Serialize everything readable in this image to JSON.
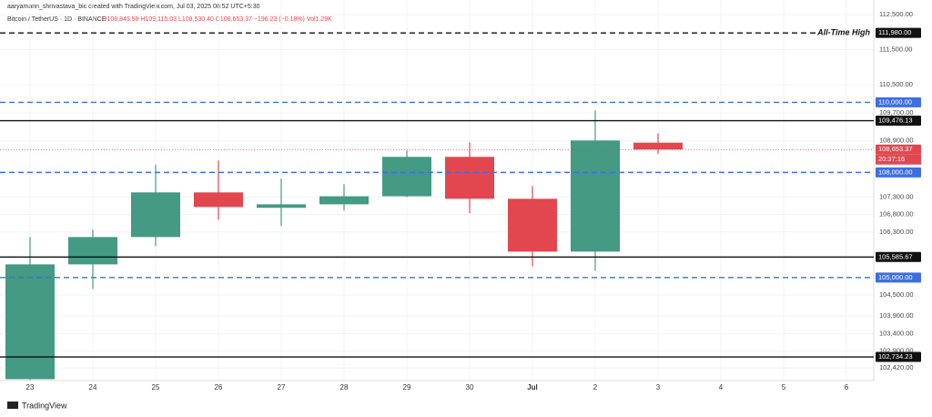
{
  "chart_data": {
    "type": "candlestick",
    "title": "aaryamann_shrivastava_bic created with TradingView.com, Jul 03, 2025 08:52 UTC+5:30",
    "subtitle": "Bitcoin / TetherUS · 1D · BINANCE",
    "legend_text": "O108,849.59  H109,115.03  L108,530.40  C108,653.37  −196.23 (−0.18%)  Vol1.29K",
    "brand": "TradingView",
    "categories": [
      "23",
      "24",
      "25",
      "26",
      "27",
      "28",
      "29",
      "30",
      "Jul",
      "2",
      "3",
      "4",
      "5",
      "6"
    ],
    "series": [
      {
        "up_color": "#449a83",
        "down_color": "#e2474f",
        "open": [
          102100,
          105376,
          106156,
          107430,
          106990,
          107090,
          107320,
          108444,
          107248,
          105740,
          108849.59,
          null,
          null,
          null
        ],
        "high": [
          106156,
          106364,
          108210,
          108340,
          107820,
          107664,
          108626,
          108860,
          107612,
          109770,
          109115.03,
          null,
          null,
          null
        ],
        "low": [
          102080,
          104674,
          105896,
          106650,
          106468,
          106910,
          107300,
          106832,
          105324,
          105194,
          108530.4,
          null,
          null,
          null
        ],
        "close": [
          105376,
          106156,
          107430,
          107014,
          107090,
          107320,
          108444,
          107248,
          105740,
          108912,
          108653.37,
          null,
          null,
          null
        ]
      }
    ],
    "ylim": [
      102060,
      112920
    ],
    "yticks": [
      {
        "value": 112500,
        "label": "112,500.00"
      },
      {
        "value": 111500,
        "label": "111,500.00"
      },
      {
        "value": 110500,
        "label": "110,500.00"
      },
      {
        "value": 109700,
        "label": "109,700.00"
      },
      {
        "value": 108900,
        "label": "108,900.00"
      },
      {
        "value": 107300,
        "label": "107,300.00"
      },
      {
        "value": 106800,
        "label": "106,800.00"
      },
      {
        "value": 106300,
        "label": "106,300.00"
      },
      {
        "value": 104500,
        "label": "104,500.00"
      },
      {
        "value": 103900,
        "label": "103,900.00"
      },
      {
        "value": 103400,
        "label": "103,400.00"
      },
      {
        "value": 102900,
        "label": "102,900.00"
      },
      {
        "value": 102420,
        "label": "102,420.00"
      }
    ],
    "grid": true,
    "levels": [
      {
        "value": 111980,
        "label": "111,980.00",
        "style": "dashed",
        "color": "#111111",
        "annotation": "All-Time High"
      },
      {
        "value": 110000,
        "label": "110,000.00",
        "style": "dashed",
        "color": "#3d6fe0"
      },
      {
        "value": 109476.13,
        "label": "109,476.13",
        "style": "solid",
        "color": "#111111"
      },
      {
        "value": 108653.37,
        "label": "108,653.37",
        "style": "dotted",
        "color": "#e2474f",
        "countdown": "20:37:16"
      },
      {
        "value": 108000,
        "label": "108,000.00",
        "style": "dashed",
        "color": "#3d6fe0"
      },
      {
        "value": 105585.67,
        "label": "105,585.67",
        "style": "solid",
        "color": "#111111"
      },
      {
        "value": 105000,
        "label": "105,000.00",
        "style": "dashed",
        "color": "#3d6fe0"
      },
      {
        "value": 102734.23,
        "label": "102,734.23",
        "style": "solid",
        "color": "#111111"
      }
    ]
  }
}
